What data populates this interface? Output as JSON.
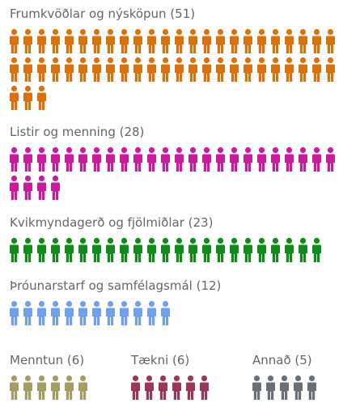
{
  "chart_data": {
    "type": "pictogram",
    "unit_icon": "person-icon",
    "categories": [
      {
        "id": "frumkvodlar",
        "label": "Frumkvöðlar og nýsköpun (51)",
        "name": "Frumkvöðlar og nýsköpun",
        "value": 51,
        "color": "#d9720c"
      },
      {
        "id": "listir",
        "label": "Listir og menning (28)",
        "name": "Listir og menning",
        "value": 28,
        "color": "#cc1a9e"
      },
      {
        "id": "kvikmyndagerd",
        "label": "Kvikmyndagerð og fjölmiðlar (23)",
        "name": "Kvikmyndagerð og fjölmiðlar",
        "value": 23,
        "color": "#0e8c17"
      },
      {
        "id": "throunarstarf",
        "label": "Þróunarstarf og samfélagsmál (12)",
        "name": "Þróunarstarf og samfélagsmál",
        "value": 12,
        "color": "#6ea0eb"
      },
      {
        "id": "menntun",
        "label": "Menntun (6)",
        "name": "Menntun",
        "value": 6,
        "color": "#a19d63"
      },
      {
        "id": "taekni",
        "label": "Tækni (6)",
        "name": "Tækni",
        "value": 6,
        "color": "#9c3659"
      },
      {
        "id": "annad",
        "label": "Annað (5)",
        "name": "Annað",
        "value": 5,
        "color": "#6a7078"
      }
    ]
  }
}
